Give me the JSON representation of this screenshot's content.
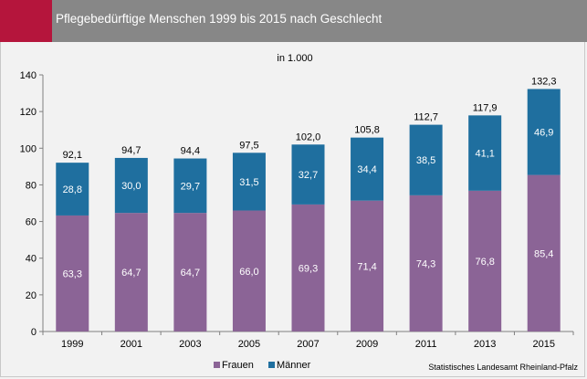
{
  "header": {
    "title": "Pflegebedürftige Menschen 1999 bis 2015 nach Geschlecht"
  },
  "colors": {
    "accent": "#b5153c",
    "header_bg": "#878787",
    "frauen": "#8b6496",
    "maenner": "#1f6f9f",
    "background": "#f2f2f2"
  },
  "chart_data": {
    "type": "bar",
    "stacked": true,
    "subtitle": "in 1.000",
    "categories": [
      "1999",
      "2001",
      "2003",
      "2005",
      "2007",
      "2009",
      "2011",
      "2013",
      "2015"
    ],
    "series": [
      {
        "name": "Frauen",
        "color": "#8b6496",
        "values": [
          63.3,
          64.7,
          64.7,
          66.0,
          69.3,
          71.4,
          74.3,
          76.8,
          85.4
        ],
        "labels": [
          "63,3",
          "64,7",
          "64,7",
          "66,0",
          "69,3",
          "71,4",
          "74,3",
          "76,8",
          "85,4"
        ]
      },
      {
        "name": "Männer",
        "color": "#1f6f9f",
        "values": [
          28.8,
          30.0,
          29.7,
          31.5,
          32.7,
          34.4,
          38.5,
          41.1,
          46.9
        ],
        "labels": [
          "28,8",
          "30,0",
          "29,7",
          "31,5",
          "32,7",
          "34,4",
          "38,5",
          "41,1",
          "46,9"
        ]
      }
    ],
    "totals": [
      92.1,
      94.7,
      94.4,
      97.5,
      102.0,
      105.8,
      112.7,
      117.9,
      132.3
    ],
    "total_labels": [
      "92,1",
      "94,7",
      "94,4",
      "97,5",
      "102,0",
      "105,8",
      "112,7",
      "117,9",
      "132,3"
    ],
    "ylim": [
      0,
      140
    ],
    "yticks": [
      0,
      20,
      40,
      60,
      80,
      100,
      120,
      140
    ],
    "grid": false,
    "legend": "bottom-center"
  },
  "footer": {
    "source": "Statistisches Landesamt Rheinland-Pfalz"
  }
}
